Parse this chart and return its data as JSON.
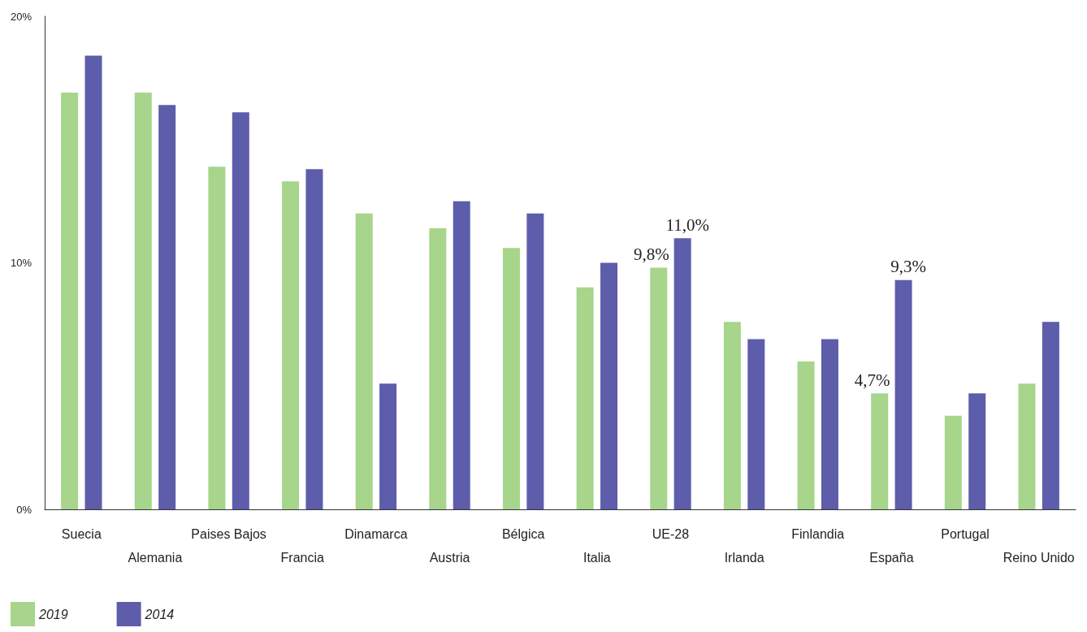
{
  "chart_data": {
    "type": "bar",
    "categories": [
      "Suecia",
      "Alemania",
      "Paises Bajos",
      "Francia",
      "Dinamarca",
      "Austria",
      "Bélgica",
      "Italia",
      "UE-28",
      "Irlanda",
      "Finlandia",
      "España",
      "Portugal",
      "Reino Unido"
    ],
    "series": [
      {
        "name": "2019",
        "color": "#a6d58b",
        "values": [
          16.9,
          16.9,
          13.9,
          13.3,
          12.0,
          11.4,
          10.6,
          9.0,
          9.8,
          7.6,
          6.0,
          4.7,
          3.8,
          5.1
        ],
        "value_labels": [
          null,
          null,
          null,
          null,
          null,
          null,
          null,
          null,
          "9,8%",
          null,
          null,
          "4,7%",
          null,
          null
        ]
      },
      {
        "name": "2014",
        "color": "#5d5dab",
        "values": [
          18.4,
          16.4,
          16.1,
          13.8,
          5.1,
          12.5,
          12.0,
          10.0,
          11.0,
          6.9,
          6.9,
          9.3,
          4.7,
          7.6
        ],
        "value_labels": [
          null,
          null,
          null,
          null,
          null,
          null,
          null,
          null,
          "11,0%",
          null,
          null,
          "9,3%",
          null,
          null
        ]
      }
    ],
    "ylim": [
      0,
      20
    ],
    "yticks": [
      {
        "value": 0,
        "label": "0%"
      },
      {
        "value": 10,
        "label": "10%"
      },
      {
        "value": 20,
        "label": "20%"
      }
    ],
    "grid": false,
    "legend": "bottom left"
  }
}
